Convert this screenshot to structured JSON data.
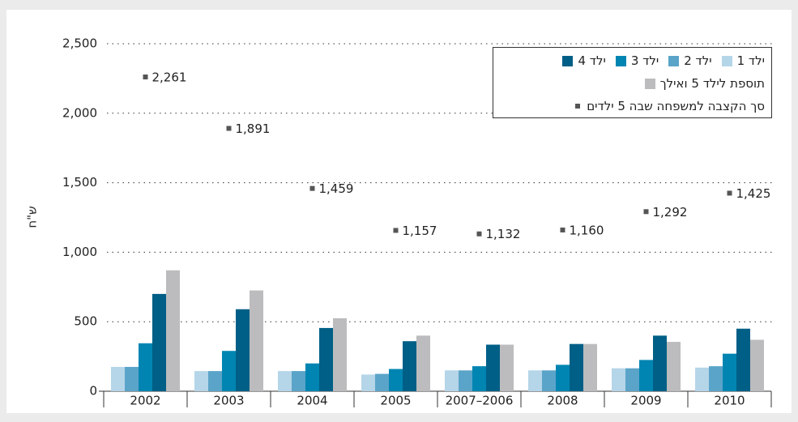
{
  "chart_data": {
    "type": "bar",
    "ylabel": "ש\"ח",
    "categories": [
      "2002",
      "2003",
      "2004",
      "2005",
      "2007–2006",
      "2008",
      "2009",
      "2010"
    ],
    "series": [
      {
        "name": "ילד 1",
        "color": "#b5d5e8",
        "values": [
          175,
          145,
          145,
          120,
          150,
          150,
          165,
          170
        ]
      },
      {
        "name": "ילד 2",
        "color": "#5ba4c9",
        "values": [
          175,
          145,
          145,
          125,
          150,
          150,
          165,
          180
        ]
      },
      {
        "name": "ילד 3",
        "color": "#0085b2",
        "values": [
          345,
          290,
          200,
          160,
          180,
          190,
          225,
          270
        ]
      },
      {
        "name": "ילד 4",
        "color": "#005f86",
        "values": [
          700,
          590,
          455,
          360,
          335,
          340,
          400,
          450
        ]
      },
      {
        "name": "תוספת לילד 5 ואילך",
        "color": "#bcbcbe",
        "values": [
          870,
          725,
          525,
          400,
          335,
          340,
          355,
          370
        ]
      },
      {
        "name": "סך הקצבה למשפחה שבה 5 ילדים",
        "color": "#555555",
        "type": "point",
        "values": [
          2261,
          1891,
          1459,
          1157,
          1132,
          1160,
          1292,
          1425
        ],
        "value_labels": [
          "2,261",
          "1,891",
          "1,459",
          "1,157",
          "1,132",
          "1,160",
          "1,292",
          "1,425"
        ]
      }
    ],
    "ylim": [
      0,
      2500
    ],
    "yticks": [
      0,
      500,
      {
        "value": 1000,
        "label": "1,000"
      },
      {
        "value": 1500,
        "label": "1,500"
      },
      {
        "value": 2000,
        "label": "2,000"
      },
      {
        "value": 2500,
        "label": "2,500"
      }
    ],
    "grid": true,
    "legend": "top-right"
  }
}
